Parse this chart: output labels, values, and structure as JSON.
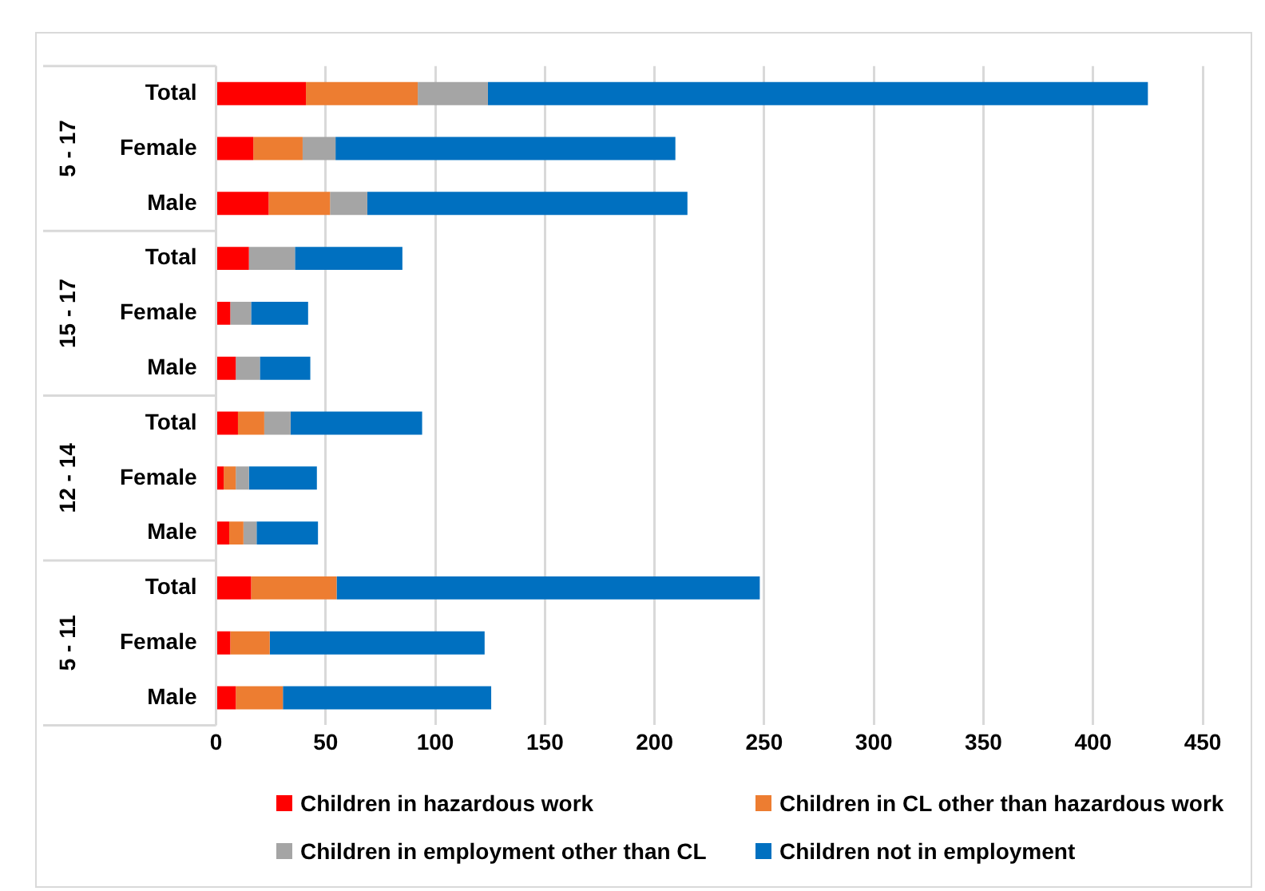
{
  "chart_data": {
    "type": "bar",
    "orientation": "horizontal",
    "stacked": true,
    "categories": [
      "Total",
      "Female",
      "Male",
      "Total",
      "Female",
      "Male",
      "Total",
      "Female",
      "Male",
      "Total",
      "Female",
      "Male"
    ],
    "annotations": [
      "5 - 17",
      "15 - 17",
      "12 - 14",
      "5 - 11"
    ],
    "series": [
      {
        "name": "Children in hazardous work",
        "color": "#ff0000",
        "values": [
          41,
          17,
          24,
          15,
          6.5,
          9,
          10,
          3.5,
          6,
          16,
          6.5,
          9
        ]
      },
      {
        "name": "Children in CL other than hazardous work",
        "color": "#ed7d31",
        "values": [
          51,
          22.5,
          28,
          0,
          0,
          0,
          12,
          5.5,
          6.5,
          39,
          18,
          21.5
        ]
      },
      {
        "name": "Children in employment other than CL",
        "color": "#a5a5a5",
        "values": [
          32,
          15,
          17,
          21,
          9.5,
          11,
          12,
          6,
          6,
          0,
          0,
          0
        ]
      },
      {
        "name": "Children not in employment",
        "color": "#0070c0",
        "values": [
          301,
          155,
          146,
          49,
          26,
          23,
          60,
          31,
          28,
          193,
          98,
          95
        ]
      }
    ],
    "xlim": [
      0,
      450
    ],
    "xticks": [
      0,
      50,
      100,
      150,
      200,
      250,
      300,
      350,
      400,
      450
    ],
    "grid": "x",
    "legend": "bottom"
  }
}
